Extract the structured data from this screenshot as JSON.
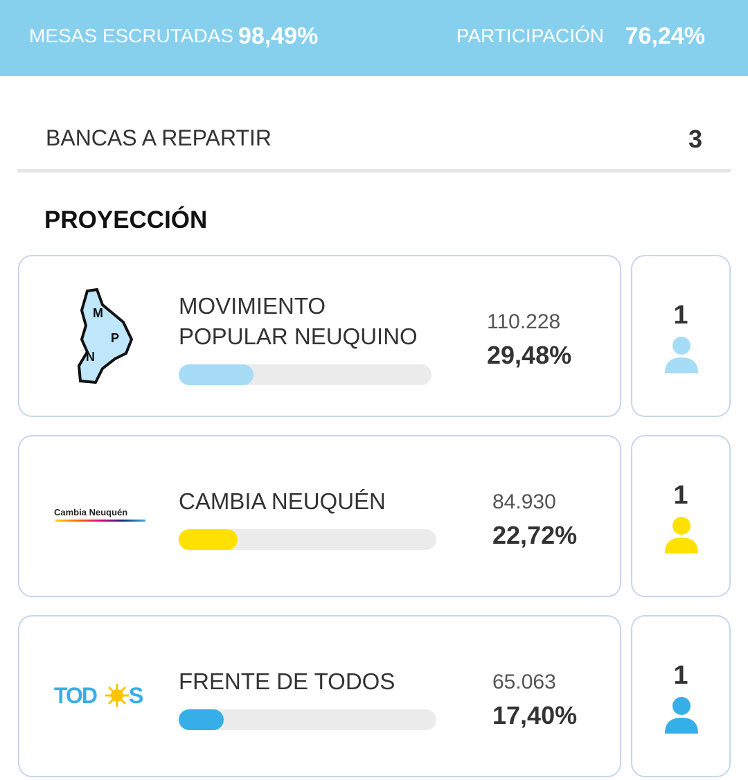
{
  "header": {
    "mesas_label": "MESAS ESCRUTADAS",
    "mesas_value": "98,49%",
    "participacion_label": "PARTICIPACIÓN",
    "participacion_value": "76,24%"
  },
  "bancas": {
    "label": "BANCAS A REPARTIR",
    "value": "3"
  },
  "section_title": "PROYECCIÓN",
  "bar_range": [
    0,
    100
  ],
  "parties": [
    {
      "name_lines": [
        "MOVIMIENTO",
        "POPULAR NEUQUINO"
      ],
      "logo": [
        "M",
        "P",
        "N"
      ],
      "votes": "110.228",
      "percent": {
        "value": 29.48,
        "label": "29,48%"
      },
      "seats": "1",
      "color": "#a6dcf5"
    },
    {
      "name_lines": [
        "CAMBIA NEUQUÉN"
      ],
      "logo": [
        "Cambia Neuquén"
      ],
      "votes": "84.930",
      "percent": {
        "value": 22.72,
        "label": "22,72%"
      },
      "seats": "1",
      "color": "#ffe100"
    },
    {
      "name_lines": [
        "FRENTE DE TODOS"
      ],
      "logo": [
        "TOD",
        "S"
      ],
      "votes": "65.063",
      "percent": {
        "value": 17.4,
        "label": "17,40%"
      },
      "seats": "1",
      "color": "#36aee8"
    }
  ]
}
